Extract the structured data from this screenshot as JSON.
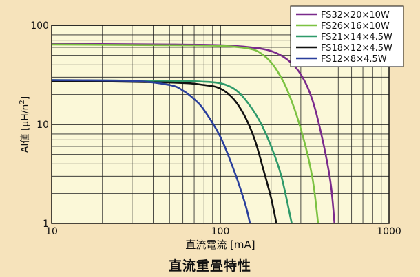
{
  "chart_data": {
    "type": "line",
    "title": "直流重畳特性",
    "xlabel": "直流電流 [mA]",
    "ylabel_main": "AI値 [μH/n",
    "ylabel_sup": "2",
    "ylabel_end": "]",
    "x_scale": "log",
    "y_scale": "log",
    "xlim": [
      10,
      1000
    ],
    "ylim": [
      1,
      100
    ],
    "x_ticks": [
      "10",
      "100",
      "1000"
    ],
    "y_ticks": [
      "1",
      "10",
      "100"
    ],
    "grid": true,
    "legend_position": "top-right",
    "series": [
      {
        "name": "FS32×20×10W",
        "color": "#7a2a8c",
        "points": [
          [
            10,
            65
          ],
          [
            50,
            64
          ],
          [
            100,
            63
          ],
          [
            150,
            60
          ],
          [
            200,
            55
          ],
          [
            250,
            45
          ],
          [
            300,
            32
          ],
          [
            350,
            18
          ],
          [
            400,
            7.5
          ],
          [
            450,
            2.6
          ],
          [
            475,
            1
          ]
        ]
      },
      {
        "name": "FS26×16×10W",
        "color": "#7cc242",
        "points": [
          [
            10,
            64
          ],
          [
            50,
            63
          ],
          [
            100,
            62
          ],
          [
            150,
            58
          ],
          [
            180,
            50
          ],
          [
            210,
            38
          ],
          [
            250,
            22
          ],
          [
            300,
            9
          ],
          [
            350,
            3
          ],
          [
            380,
            1
          ]
        ]
      },
      {
        "name": "FS21×14×4.5W",
        "color": "#2e9a6a",
        "points": [
          [
            10,
            28
          ],
          [
            50,
            27.5
          ],
          [
            80,
            27
          ],
          [
            100,
            26
          ],
          [
            120,
            23
          ],
          [
            140,
            18
          ],
          [
            170,
            11
          ],
          [
            200,
            6
          ],
          [
            230,
            3
          ],
          [
            265,
            1
          ]
        ]
      },
      {
        "name": "FS18×12×4.5W",
        "color": "#111111",
        "points": [
          [
            10,
            27.5
          ],
          [
            50,
            26.5
          ],
          [
            80,
            25
          ],
          [
            100,
            23
          ],
          [
            120,
            18
          ],
          [
            140,
            12
          ],
          [
            160,
            7
          ],
          [
            180,
            3.5
          ],
          [
            200,
            1.8
          ],
          [
            215,
            1
          ]
        ]
      },
      {
        "name": "FS12×8×4.5W",
        "color": "#2a3f9c",
        "points": [
          [
            10,
            28
          ],
          [
            30,
            27.5
          ],
          [
            50,
            25
          ],
          [
            60,
            22
          ],
          [
            70,
            18
          ],
          [
            80,
            14
          ],
          [
            100,
            7.5
          ],
          [
            120,
            3.5
          ],
          [
            140,
            1.6
          ],
          [
            150,
            1
          ]
        ]
      }
    ]
  }
}
